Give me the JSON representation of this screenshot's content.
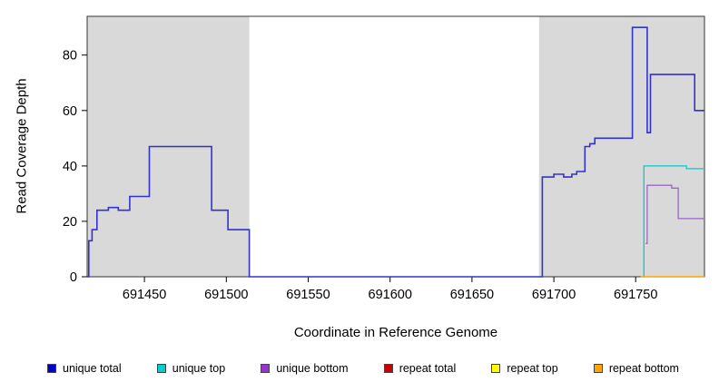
{
  "chart_data": {
    "type": "line",
    "subtype": "step-coverage",
    "title": "",
    "xlabel": "Coordinate in Reference Genome",
    "ylabel": "Read Coverage Depth",
    "xlim": [
      691415,
      691792
    ],
    "ylim": [
      0,
      94
    ],
    "grid": false,
    "legend_position": "bottom",
    "shade_color": "#D9D9D9",
    "shaded_regions": [
      [
        691415,
        691514
      ],
      [
        691691,
        691792
      ]
    ],
    "x_ticks": [
      {
        "value": 691450,
        "label": "691450"
      },
      {
        "value": 691500,
        "label": "691500"
      },
      {
        "value": 691550,
        "label": "691550"
      },
      {
        "value": 691600,
        "label": "691600"
      },
      {
        "value": 691650,
        "label": "691650"
      },
      {
        "value": 691700,
        "label": "691700"
      },
      {
        "value": 691750,
        "label": "691750"
      }
    ],
    "y_ticks": [
      {
        "value": 0,
        "label": "0"
      },
      {
        "value": 20,
        "label": "20"
      },
      {
        "value": 40,
        "label": "40"
      },
      {
        "value": 60,
        "label": "60"
      },
      {
        "value": 80,
        "label": "80"
      }
    ],
    "series": [
      {
        "name": "unique total",
        "color": "#3333CC",
        "width": 1.6,
        "x_end": 691792,
        "points": [
          [
            691415,
            0
          ],
          [
            691416,
            13
          ],
          [
            691418,
            17
          ],
          [
            691421,
            24
          ],
          [
            691428,
            25
          ],
          [
            691434,
            24
          ],
          [
            691441,
            29
          ],
          [
            691453,
            47
          ],
          [
            691491,
            24
          ],
          [
            691501,
            17
          ],
          [
            691514,
            0
          ],
          [
            691693,
            36
          ],
          [
            691700,
            37
          ],
          [
            691706,
            36
          ],
          [
            691711,
            37
          ],
          [
            691714,
            38
          ],
          [
            691719,
            47
          ],
          [
            691722,
            48
          ],
          [
            691725,
            50
          ],
          [
            691748,
            90
          ],
          [
            691757,
            52
          ],
          [
            691759,
            73
          ],
          [
            691786,
            60
          ]
        ]
      },
      {
        "name": "unique top",
        "color": "#00CDCD",
        "width": 1.3,
        "x_end": 691792,
        "points": [
          [
            691754,
            0
          ],
          [
            691755,
            40
          ],
          [
            691781,
            39
          ]
        ]
      },
      {
        "name": "unique bottom",
        "color": "#9966CC",
        "width": 1.3,
        "x_end": 691792,
        "points": [
          [
            691756,
            12
          ],
          [
            691757,
            33
          ],
          [
            691772,
            32
          ],
          [
            691776,
            21
          ]
        ]
      },
      {
        "name": "repeat bottom",
        "color": "#FFA500",
        "width": 1.5,
        "x_end": 691792,
        "points": [
          [
            691753,
            0
          ]
        ]
      }
    ]
  },
  "legend": {
    "items": [
      {
        "label": "unique total",
        "color": "#0000CC"
      },
      {
        "label": "unique top",
        "color": "#00CDCD"
      },
      {
        "label": "unique bottom",
        "color": "#9933CC"
      },
      {
        "label": "repeat total",
        "color": "#CC0000"
      },
      {
        "label": "repeat top",
        "color": "#FFFF00"
      },
      {
        "label": "repeat bottom",
        "color": "#FFA500"
      }
    ]
  }
}
